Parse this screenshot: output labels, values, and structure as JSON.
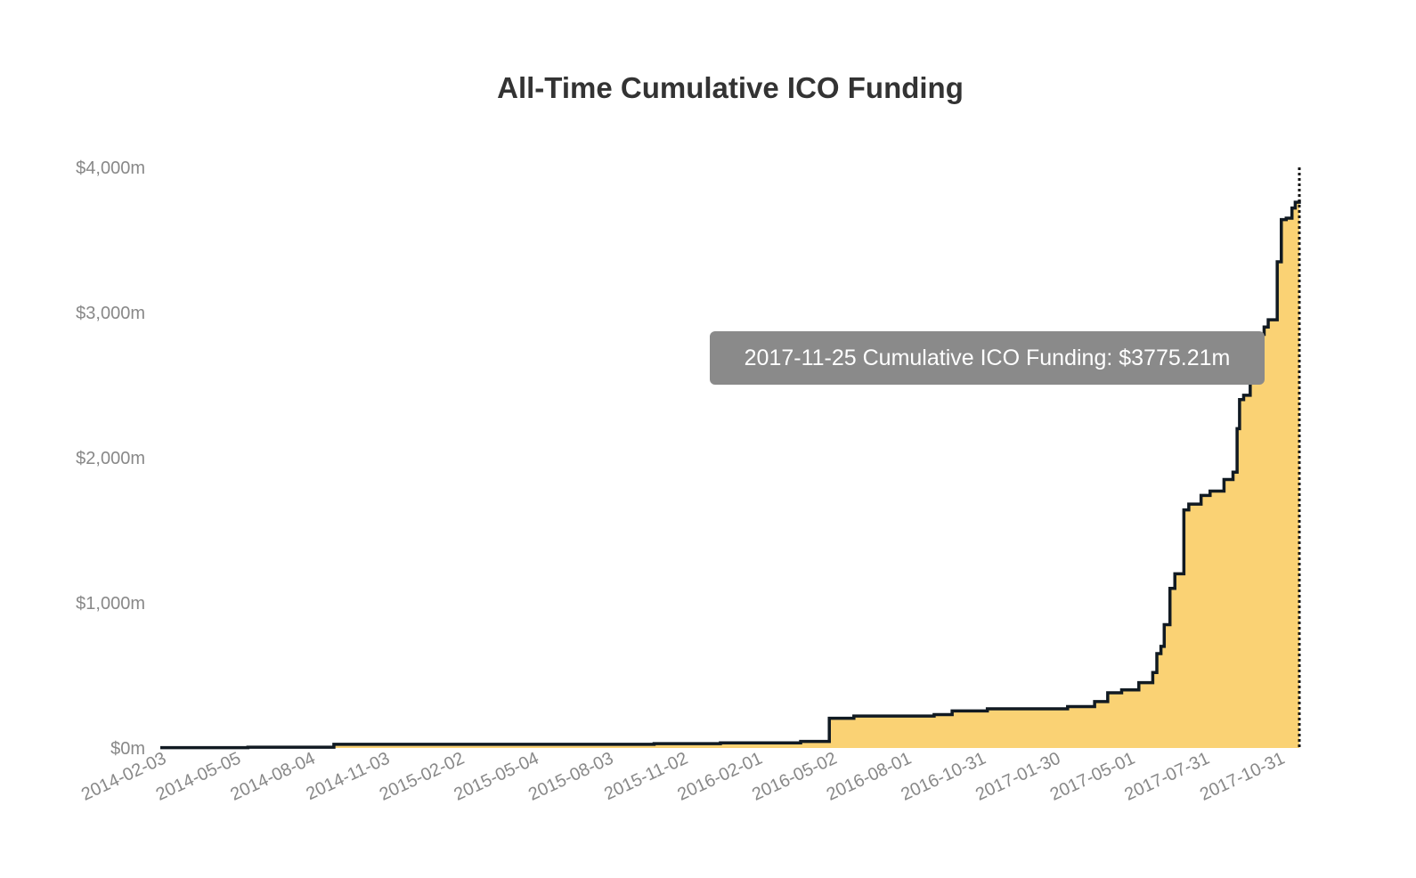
{
  "chart_data": {
    "type": "area",
    "title": "All-Time Cumulative ICO Funding",
    "xlabel": "",
    "ylabel": "",
    "xlim": [
      "2014-02-03",
      "2017-11-25"
    ],
    "ylim": [
      0,
      4000
    ],
    "y_ticks": [
      0,
      1000,
      2000,
      3000,
      4000
    ],
    "y_tick_labels": [
      "$0m",
      "$1,000m",
      "$2,000m",
      "$3,000m",
      "$4,000m"
    ],
    "x_tick_labels": [
      "2014-02-03",
      "2014-05-05",
      "2014-08-04",
      "2014-11-03",
      "2015-02-02",
      "2015-05-04",
      "2015-08-03",
      "2015-11-02",
      "2016-02-01",
      "2016-05-02",
      "2016-08-01",
      "2016-10-31",
      "2017-01-30",
      "2017-05-01",
      "2017-07-31",
      "2017-10-31"
    ],
    "grid": false,
    "fill_color": "#fad274",
    "line_color": "#111a22",
    "series": [
      {
        "name": "Cumulative ICO Funding",
        "points": [
          [
            "2014-02-03",
            2
          ],
          [
            "2014-05-21",
            5
          ],
          [
            "2014-09-03",
            25
          ],
          [
            "2015-09-29",
            30
          ],
          [
            "2015-12-19",
            35
          ],
          [
            "2016-03-26",
            45
          ],
          [
            "2016-04-30",
            205
          ],
          [
            "2016-05-30",
            220
          ],
          [
            "2016-09-05",
            230
          ],
          [
            "2016-09-27",
            255
          ],
          [
            "2016-11-09",
            270
          ],
          [
            "2017-02-15",
            285
          ],
          [
            "2017-03-20",
            320
          ],
          [
            "2017-04-05",
            380
          ],
          [
            "2017-04-22",
            400
          ],
          [
            "2017-05-13",
            450
          ],
          [
            "2017-05-30",
            520
          ],
          [
            "2017-06-04",
            650
          ],
          [
            "2017-06-09",
            700
          ],
          [
            "2017-06-13",
            850
          ],
          [
            "2017-06-20",
            1100
          ],
          [
            "2017-06-26",
            1200
          ],
          [
            "2017-07-07",
            1640
          ],
          [
            "2017-07-13",
            1680
          ],
          [
            "2017-07-28",
            1740
          ],
          [
            "2017-08-08",
            1770
          ],
          [
            "2017-08-25",
            1850
          ],
          [
            "2017-09-05",
            1900
          ],
          [
            "2017-09-10",
            2200
          ],
          [
            "2017-09-13",
            2400
          ],
          [
            "2017-09-18",
            2430
          ],
          [
            "2017-09-26",
            2780
          ],
          [
            "2017-10-02",
            2850
          ],
          [
            "2017-10-13",
            2900
          ],
          [
            "2017-10-18",
            2950
          ],
          [
            "2017-10-29",
            3350
          ],
          [
            "2017-11-03",
            3640
          ],
          [
            "2017-11-09",
            3650
          ],
          [
            "2017-11-16",
            3720
          ],
          [
            "2017-11-20",
            3760
          ],
          [
            "2017-11-25",
            3775.21
          ]
        ]
      }
    ],
    "tooltip": {
      "date": "2017-11-25",
      "text": "2017-11-25 Cumulative ICO Funding: $3775.21m",
      "value": 3775.21
    }
  }
}
